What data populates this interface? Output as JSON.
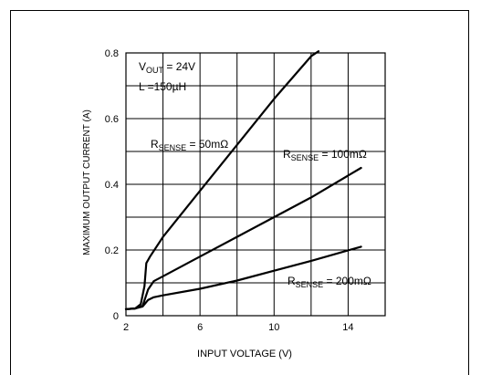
{
  "chart_data": {
    "type": "line",
    "title": "",
    "xlabel": "INPUT VOLTAGE (V)",
    "ylabel": "MAXIMUM OUTPUT CURRENT (A)",
    "xlim": [
      2,
      16
    ],
    "ylim": [
      0,
      0.8
    ],
    "xticks": [
      2,
      6,
      10,
      14
    ],
    "xtick_labels": [
      "2",
      "6",
      "10",
      "14"
    ],
    "yticks": [
      0,
      0.2,
      0.4,
      0.6,
      0.8
    ],
    "ytick_labels": [
      "0",
      "0.2",
      "0.4",
      "0.6",
      "0.8"
    ],
    "grid": true,
    "annotations": {
      "conditions": {
        "vout": "V",
        "vout_sub": "OUT",
        "vout_val": " = 24V",
        "l": "L =150µH"
      },
      "r50": {
        "r": "R",
        "sub": "SENSE",
        "val": " = 50mΩ"
      },
      "r100": {
        "r": "R",
        "sub": "SENSE",
        "val": " = 100mΩ"
      },
      "r200": {
        "r": "R",
        "sub": "SENSE",
        "val": " = 200mΩ"
      }
    },
    "series": [
      {
        "name": "RSENSE = 50mΩ",
        "x": [
          2.0,
          2.5,
          2.8,
          3.0,
          3.1,
          3.3,
          4,
          6,
          8,
          10,
          12,
          12.4
        ],
        "y": [
          0.02,
          0.022,
          0.035,
          0.09,
          0.16,
          0.18,
          0.24,
          0.38,
          0.52,
          0.66,
          0.79,
          0.805
        ]
      },
      {
        "name": "RSENSE = 100mΩ",
        "x": [
          2.0,
          2.5,
          2.9,
          3.2,
          3.5,
          4,
          6,
          8,
          10,
          12,
          14.7
        ],
        "y": [
          0.02,
          0.022,
          0.03,
          0.08,
          0.105,
          0.12,
          0.18,
          0.24,
          0.3,
          0.36,
          0.45
        ]
      },
      {
        "name": "RSENSE = 200mΩ",
        "x": [
          2.0,
          2.5,
          2.9,
          3.2,
          3.5,
          4,
          6,
          8,
          10,
          12,
          14.7
        ],
        "y": [
          0.02,
          0.022,
          0.028,
          0.048,
          0.056,
          0.062,
          0.082,
          0.107,
          0.137,
          0.167,
          0.21
        ]
      }
    ]
  }
}
